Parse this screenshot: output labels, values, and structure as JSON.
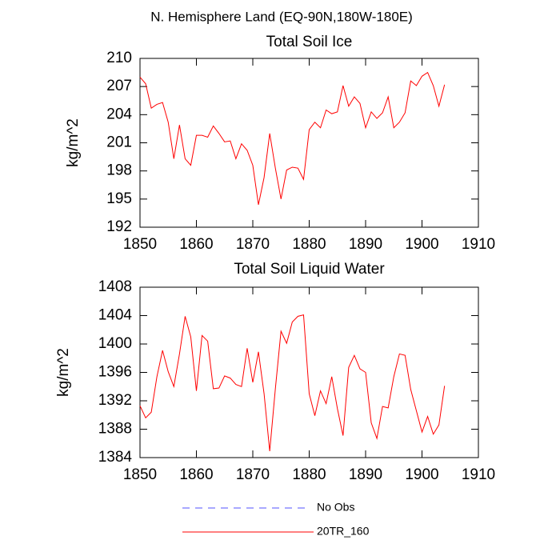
{
  "title": "N. Hemisphere Land (EQ-90N,180W-180E)",
  "extra_legend": [
    {
      "name": "No Obs",
      "color": "#5050ff",
      "dashed": true
    }
  ],
  "chart_data": [
    {
      "type": "line",
      "title": "Total Soil Ice",
      "y_label": "kg/m^2",
      "x": [
        1850,
        1851,
        1852,
        1853,
        1854,
        1855,
        1856,
        1857,
        1858,
        1859,
        1860,
        1861,
        1862,
        1863,
        1864,
        1865,
        1866,
        1867,
        1868,
        1869,
        1870,
        1871,
        1872,
        1873,
        1874,
        1875,
        1876,
        1877,
        1878,
        1879,
        1880,
        1881,
        1882,
        1883,
        1884,
        1885,
        1886,
        1887,
        1888,
        1889,
        1890,
        1891,
        1892,
        1893,
        1894,
        1895,
        1896,
        1897,
        1898,
        1899,
        1900,
        1901,
        1902,
        1903,
        1904
      ],
      "series": [
        {
          "name": "20TR_160",
          "color": "#ff0000",
          "values": [
            208.0,
            207.3,
            204.7,
            205.1,
            205.3,
            203.2,
            199.3,
            202.9,
            199.3,
            198.6,
            201.8,
            201.8,
            201.6,
            202.8,
            202.0,
            201.1,
            201.2,
            199.3,
            200.9,
            200.2,
            198.6,
            194.4,
            197.3,
            202.0,
            198.3,
            195.0,
            198.1,
            198.4,
            198.3,
            197.1,
            202.4,
            203.2,
            202.6,
            204.5,
            204.1,
            204.3,
            207.1,
            204.9,
            205.9,
            205.2,
            202.6,
            204.3,
            203.6,
            204.2,
            205.9,
            202.6,
            203.2,
            204.2,
            207.6,
            207.1,
            208.1,
            208.5,
            207.1,
            204.9,
            207.2
          ]
        }
      ],
      "xlim": [
        1850,
        1910
      ],
      "xticks": [
        1850,
        1860,
        1870,
        1880,
        1890,
        1900,
        1910
      ],
      "ylim": [
        192,
        210
      ],
      "yticks": [
        192,
        195,
        198,
        201,
        204,
        207,
        210
      ]
    },
    {
      "type": "line",
      "title": "Total Soil Liquid Water",
      "y_label": "kg/m^2",
      "x": [
        1850,
        1851,
        1852,
        1853,
        1854,
        1855,
        1856,
        1857,
        1858,
        1859,
        1860,
        1861,
        1862,
        1863,
        1864,
        1865,
        1866,
        1867,
        1868,
        1869,
        1870,
        1871,
        1872,
        1873,
        1874,
        1875,
        1876,
        1877,
        1878,
        1879,
        1880,
        1881,
        1882,
        1883,
        1884,
        1885,
        1886,
        1887,
        1888,
        1889,
        1890,
        1891,
        1892,
        1893,
        1894,
        1895,
        1896,
        1897,
        1898,
        1899,
        1900,
        1901,
        1902,
        1903,
        1904
      ],
      "series": [
        {
          "name": "20TR_160",
          "color": "#ff0000",
          "values": [
            1391.3,
            1389.6,
            1390.4,
            1395.4,
            1399.1,
            1396.1,
            1394.0,
            1398.6,
            1403.9,
            1401.0,
            1393.4,
            1401.2,
            1400.4,
            1393.7,
            1393.8,
            1395.5,
            1395.2,
            1394.3,
            1394.0,
            1399.4,
            1394.6,
            1398.9,
            1393.0,
            1384.9,
            1393.7,
            1401.8,
            1400.1,
            1403.1,
            1403.9,
            1404.1,
            1393.0,
            1389.9,
            1393.4,
            1391.6,
            1395.4,
            1390.9,
            1387.1,
            1396.7,
            1398.4,
            1396.5,
            1396.0,
            1388.9,
            1386.7,
            1391.2,
            1391.0,
            1395.4,
            1398.6,
            1398.4,
            1393.6,
            1390.6,
            1387.6,
            1389.8,
            1387.3,
            1388.6,
            1394.1
          ]
        }
      ],
      "xlim": [
        1850,
        1910
      ],
      "xticks": [
        1850,
        1860,
        1870,
        1880,
        1890,
        1900,
        1910
      ],
      "ylim": [
        1384,
        1408
      ],
      "yticks": [
        1384,
        1388,
        1392,
        1396,
        1400,
        1404,
        1408
      ]
    }
  ]
}
